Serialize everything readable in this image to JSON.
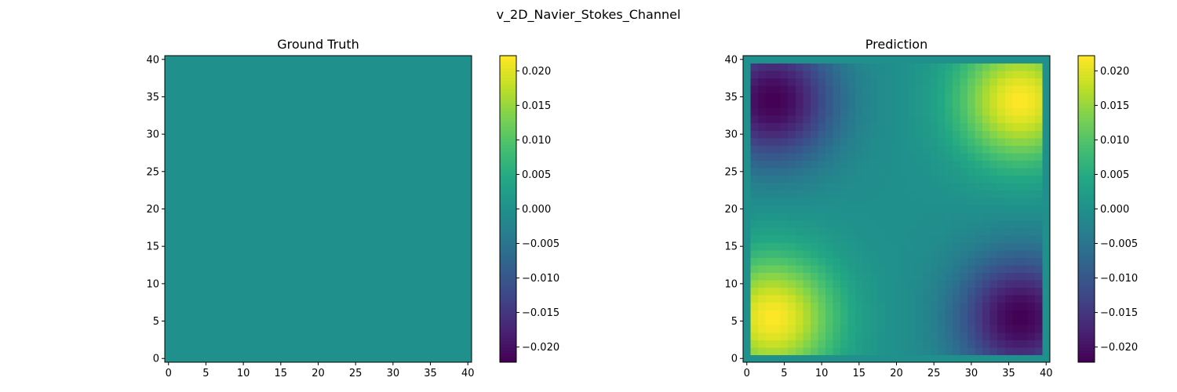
{
  "suptitle": "v_2D_Navier_Stokes_Channel",
  "chart_data": [
    {
      "type": "heatmap",
      "title": "Ground Truth",
      "xlim": [
        -0.5,
        40.5
      ],
      "ylim": [
        -0.5,
        40.5
      ],
      "xticks": [
        0,
        5,
        10,
        15,
        20,
        25,
        30,
        35,
        40
      ],
      "yticks": [
        0,
        5,
        10,
        15,
        20,
        25,
        30,
        35,
        40
      ],
      "grid_size": 41,
      "field": "constant",
      "value": 0.0,
      "colormap": "viridis",
      "colorbar": {
        "min": -0.0222,
        "max": 0.0222,
        "ticks": [
          0.02,
          0.015,
          0.01,
          0.005,
          0.0,
          -0.005,
          -0.01,
          -0.015,
          -0.02
        ],
        "tick_labels": [
          "0.020",
          "0.015",
          "0.010",
          "0.005",
          "0.000",
          "−0.005",
          "−0.010",
          "−0.015",
          "−0.020"
        ]
      }
    },
    {
      "type": "heatmap",
      "title": "Prediction",
      "xlim": [
        -0.5,
        40.5
      ],
      "ylim": [
        -0.5,
        40.5
      ],
      "xticks": [
        0,
        5,
        10,
        15,
        20,
        25,
        30,
        35,
        40
      ],
      "yticks": [
        0,
        5,
        10,
        15,
        20,
        25,
        30,
        35,
        40
      ],
      "grid_size": 41,
      "field": "quadrupole vortex pattern",
      "interior_range": [
        1,
        39
      ],
      "blobs": [
        {
          "cx": 3.5,
          "cy": 5.5,
          "amplitude": 0.0222
        },
        {
          "cx": 36.5,
          "cy": 34.5,
          "amplitude": 0.0222
        },
        {
          "cx": 3.5,
          "cy": 34.5,
          "amplitude": -0.0222
        },
        {
          "cx": 36.5,
          "cy": 5.5,
          "amplitude": -0.0222
        }
      ],
      "colormap": "viridis",
      "colorbar": {
        "min": -0.0222,
        "max": 0.0222,
        "ticks": [
          0.02,
          0.015,
          0.01,
          0.005,
          0.0,
          -0.005,
          -0.01,
          -0.015,
          -0.02
        ],
        "tick_labels": [
          "0.020",
          "0.015",
          "0.010",
          "0.005",
          "0.000",
          "−0.005",
          "−0.010",
          "−0.015",
          "−0.020"
        ]
      }
    }
  ]
}
